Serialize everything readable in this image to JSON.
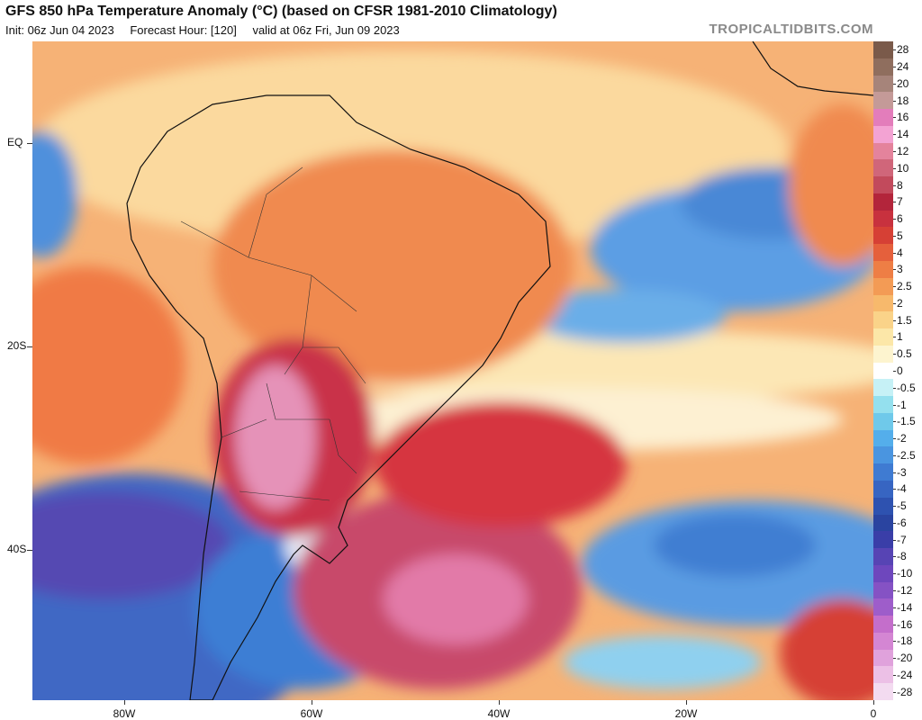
{
  "header": {
    "title": "GFS 850 hPa Temperature Anomaly (°C) (based on CFSR 1981-2010 Climatology)",
    "init": "Init: 06z Jun 04 2023",
    "forecast_hour": "Forecast Hour: [120]",
    "valid": "valid at 06z Fri, Jun 09 2023",
    "watermark": "TROPICALTIDBITS.COM"
  },
  "axes": {
    "lat_labels": [
      "EQ",
      "20S",
      "40S"
    ],
    "lon_labels": [
      "80W",
      "60W",
      "40W",
      "20W",
      "0"
    ]
  },
  "colorbar": {
    "levels": [
      "28",
      "24",
      "20",
      "18",
      "16",
      "14",
      "12",
      "10",
      "8",
      "7",
      "6",
      "5",
      "4",
      "3",
      "2.5",
      "2",
      "1.5",
      "1",
      "0.5",
      "0",
      "-0.5",
      "-1",
      "-1.5",
      "-2",
      "-2.5",
      "-3",
      "-4",
      "-5",
      "-6",
      "-7",
      "-8",
      "-10",
      "-12",
      "-14",
      "-16",
      "-18",
      "-20",
      "-24",
      "-28"
    ],
    "colors": [
      "#7a5a4a",
      "#8f6e5e",
      "#a6847a",
      "#c49a98",
      "#e37dbb",
      "#f3a3d3",
      "#e4839c",
      "#d0667a",
      "#c24a5c",
      "#b3253b",
      "#c8313e",
      "#d64035",
      "#e5603c",
      "#ee7e45",
      "#f39b55",
      "#f7b96c",
      "#fad389",
      "#fce7a8",
      "#fdf4cf",
      "#ffffff",
      "#c6f1f6",
      "#94e0ee",
      "#6fc9ea",
      "#54aeeb",
      "#4a95e0",
      "#3f7bd2",
      "#3765c2",
      "#2e52b0",
      "#2a44a0",
      "#3a3ea8",
      "#5744b4",
      "#6e47bd",
      "#8552c4",
      "#9e5dca",
      "#c46ecb",
      "#d486d3",
      "#e0a2dc",
      "#ecc0e6",
      "#f3dbf0"
    ]
  },
  "regions": {
    "land_color": "#f7c98c",
    "ocean_warm": "#f4a56a",
    "cold_blue": "#4a86d8"
  }
}
